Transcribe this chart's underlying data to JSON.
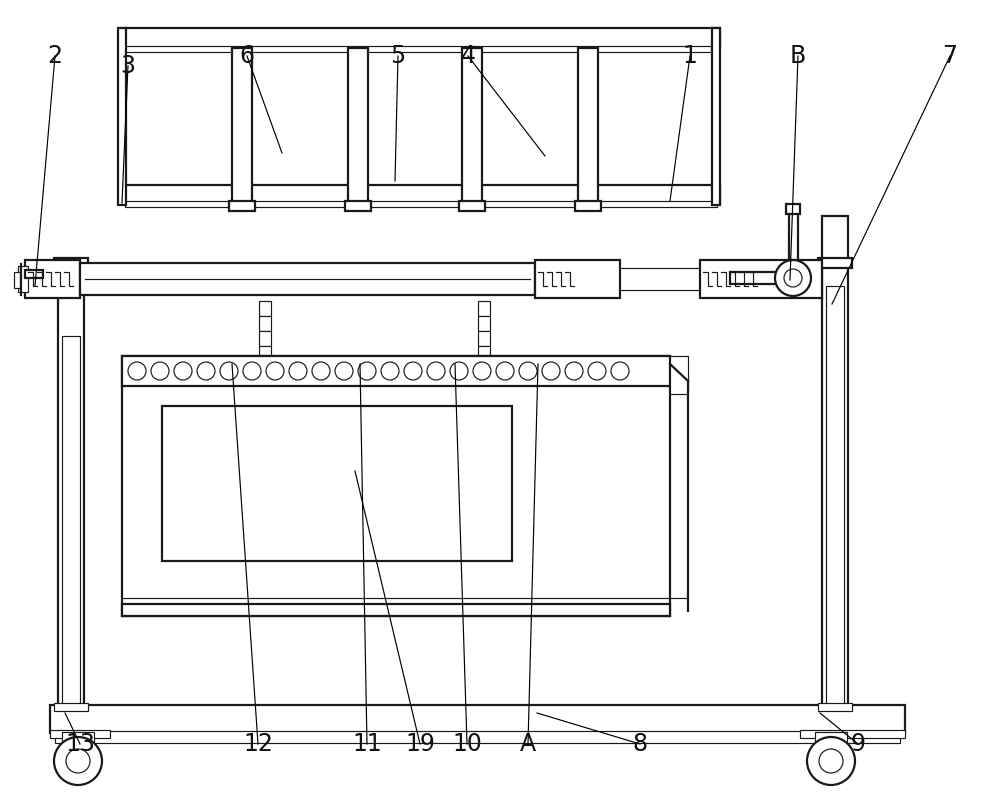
{
  "bg": "#ffffff",
  "lc": "#1a1a1a",
  "lw": 1.6,
  "tlw": 0.85,
  "fig_w": 10.0,
  "fig_h": 8.01,
  "dpi": 100,
  "labels": [
    "1",
    "2",
    "3",
    "4",
    "5",
    "6",
    "7",
    "8",
    "9",
    "10",
    "11",
    "12",
    "13",
    "19",
    "A",
    "B"
  ],
  "lx": [
    690,
    55,
    128,
    468,
    398,
    247,
    950,
    640,
    858,
    467,
    367,
    258,
    80,
    420,
    528,
    798
  ],
  "ly": [
    745,
    745,
    735,
    745,
    745,
    745,
    745,
    57,
    57,
    57,
    57,
    57,
    57,
    57,
    57,
    745
  ],
  "ex": [
    670,
    35,
    122,
    545,
    395,
    282,
    832,
    537,
    820,
    455,
    360,
    232,
    65,
    355,
    538,
    790
  ],
  "ey": [
    600,
    515,
    598,
    645,
    620,
    648,
    497,
    88,
    88,
    437,
    437,
    437,
    88,
    330,
    437,
    521
  ]
}
